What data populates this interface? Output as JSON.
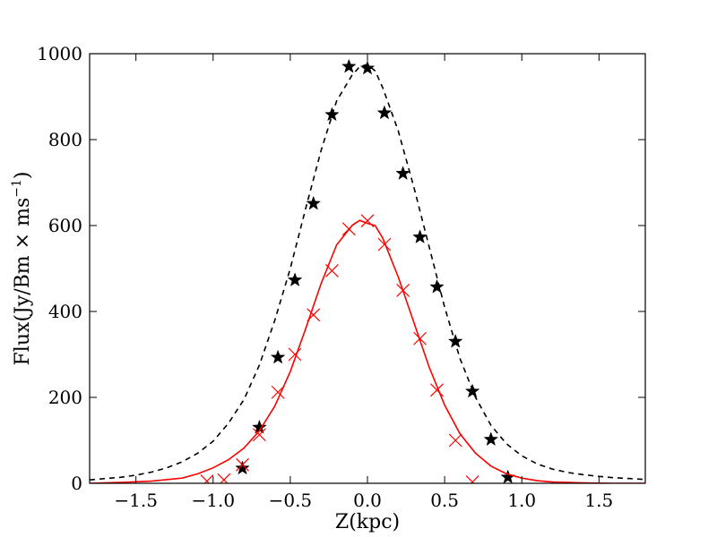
{
  "chart_data": {
    "type": "line",
    "title": "",
    "xlabel": "Z(kpc)",
    "ylabel": "Flux(Jy/Bm × ms",
    "ylabel_superscript": "−1",
    "ylabel_close": ")",
    "xlim": [
      -1.8,
      1.8
    ],
    "ylim": [
      0,
      1000
    ],
    "xticks": [
      -1.5,
      -1.0,
      -0.5,
      0.0,
      0.5,
      1.0,
      1.5
    ],
    "xtick_labels": [
      "−1.5",
      "−1.0",
      "−0.5",
      "0.0",
      "0.5",
      "1.0",
      "1.5"
    ],
    "yticks": [
      0,
      200,
      400,
      600,
      800,
      1000
    ],
    "ytick_labels": [
      "0",
      "200",
      "400",
      "600",
      "800",
      "1000"
    ],
    "grid": false,
    "legend": "none",
    "series": [
      {
        "kind": "line",
        "style": "dashed",
        "color": "#000000",
        "x": [
          -1.8,
          -1.7,
          -1.6,
          -1.5,
          -1.4,
          -1.3,
          -1.2,
          -1.1,
          -1.0,
          -0.9,
          -0.8,
          -0.7,
          -0.6,
          -0.5,
          -0.4,
          -0.3,
          -0.2,
          -0.1,
          -0.05,
          0.0,
          0.05,
          0.1,
          0.2,
          0.3,
          0.4,
          0.5,
          0.6,
          0.7,
          0.8,
          0.9,
          1.0,
          1.1,
          1.2,
          1.3,
          1.4,
          1.5,
          1.6,
          1.7,
          1.8
        ],
        "y": [
          8,
          11,
          14,
          19,
          26,
          36,
          50,
          70,
          98,
          140,
          195,
          275,
          380,
          500,
          640,
          775,
          890,
          950,
          970,
          975,
          960,
          920,
          820,
          690,
          550,
          410,
          290,
          200,
          135,
          92,
          64,
          45,
          33,
          25,
          20,
          16,
          13,
          11,
          9
        ]
      },
      {
        "kind": "scatter",
        "marker": "star",
        "color": "#000000",
        "x": [
          -0.81,
          -0.7,
          -0.58,
          -0.47,
          -0.35,
          -0.23,
          -0.12,
          0.0,
          0.11,
          0.23,
          0.34,
          0.45,
          0.57,
          0.68,
          0.8,
          0.91
        ],
        "y": [
          35,
          130,
          293,
          473,
          651,
          858,
          970,
          966,
          862,
          721,
          573,
          457,
          330,
          214,
          102,
          14
        ]
      },
      {
        "kind": "line",
        "style": "solid",
        "color": "#ff0000",
        "x": [
          -1.8,
          -1.6,
          -1.4,
          -1.2,
          -1.1,
          -1.0,
          -0.9,
          -0.8,
          -0.7,
          -0.6,
          -0.5,
          -0.4,
          -0.3,
          -0.2,
          -0.1,
          -0.05,
          0.0,
          0.05,
          0.1,
          0.2,
          0.3,
          0.4,
          0.5,
          0.6,
          0.7,
          0.8,
          0.9,
          1.0,
          1.1,
          1.2,
          1.4,
          1.6,
          1.8
        ],
        "y": [
          0,
          2,
          5,
          12,
          22,
          36,
          55,
          82,
          122,
          180,
          260,
          360,
          465,
          555,
          600,
          612,
          605,
          600,
          570,
          480,
          375,
          270,
          182,
          115,
          70,
          40,
          22,
          12,
          6,
          3,
          1,
          0,
          0
        ]
      },
      {
        "kind": "scatter",
        "marker": "x",
        "color": "#ff0000",
        "x": [
          -1.04,
          -0.93,
          -0.81,
          -0.7,
          -0.58,
          -0.47,
          -0.35,
          -0.23,
          -0.12,
          0.0,
          0.11,
          0.23,
          0.34,
          0.45,
          0.57,
          0.68
        ],
        "y": [
          5,
          8,
          43,
          113,
          212,
          300,
          392,
          495,
          592,
          611,
          556,
          449,
          337,
          217,
          100,
          3
        ]
      }
    ]
  }
}
